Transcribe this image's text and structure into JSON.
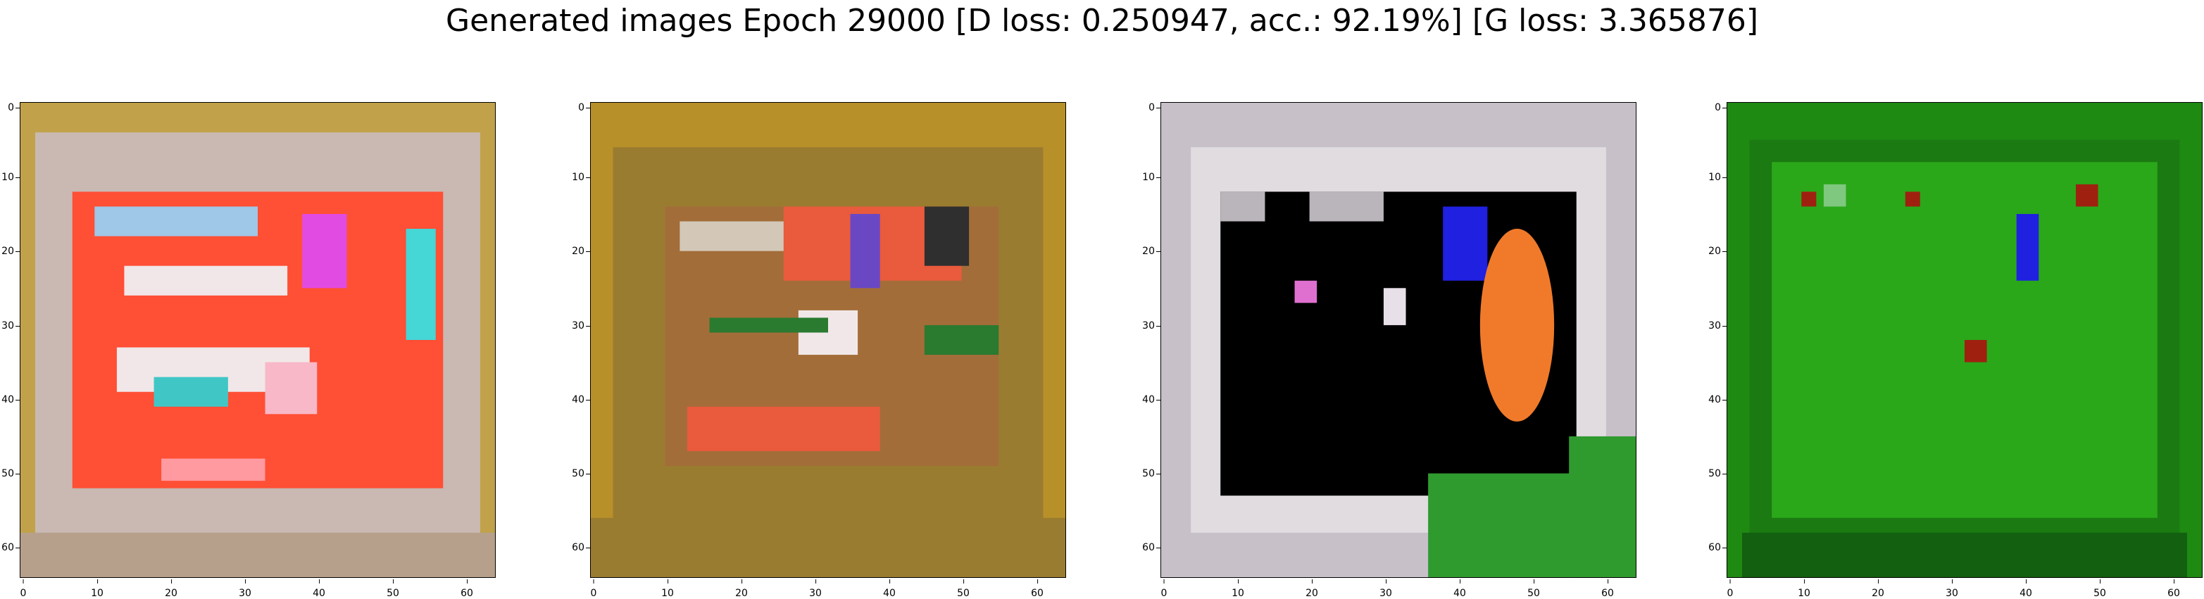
{
  "title": "Generated images Epoch 29000 [D loss: 0.250947, acc.: 92.19%] [G loss: 3.365876]",
  "axis_ticks": {
    "y": [
      "0",
      "10",
      "20",
      "30",
      "40",
      "50",
      "60"
    ],
    "x": [
      "0",
      "10",
      "20",
      "30",
      "40",
      "50",
      "60"
    ]
  },
  "panels": [
    {
      "palette": {
        "base": "#b89a3c",
        "frame": "#c9b9b2",
        "blob_a": "#ff4b2f",
        "blob_b": "#e8e0e8",
        "accent": "#3fd0d0",
        "accent2": "#e040e0"
      }
    },
    {
      "palette": {
        "base": "#b8902a",
        "frame": "#9a7c30",
        "blob_a": "#e85a3a",
        "blob_b": "#d8c090",
        "accent": "#2a7a30",
        "accent2": "#6040c0"
      }
    },
    {
      "palette": {
        "base": "#c8c0c8",
        "frame": "#e0dce0",
        "blob_a": "#000000",
        "blob_b": "#f07a2a",
        "accent": "#2020e0",
        "accent2": "#1a8a1a"
      }
    },
    {
      "palette": {
        "base": "#1e8a12",
        "frame": "#126010",
        "blob_a": "#2aa81a",
        "blob_b": "#2a9a1a",
        "accent": "#2020e0",
        "accent2": "#a02010"
      }
    }
  ]
}
